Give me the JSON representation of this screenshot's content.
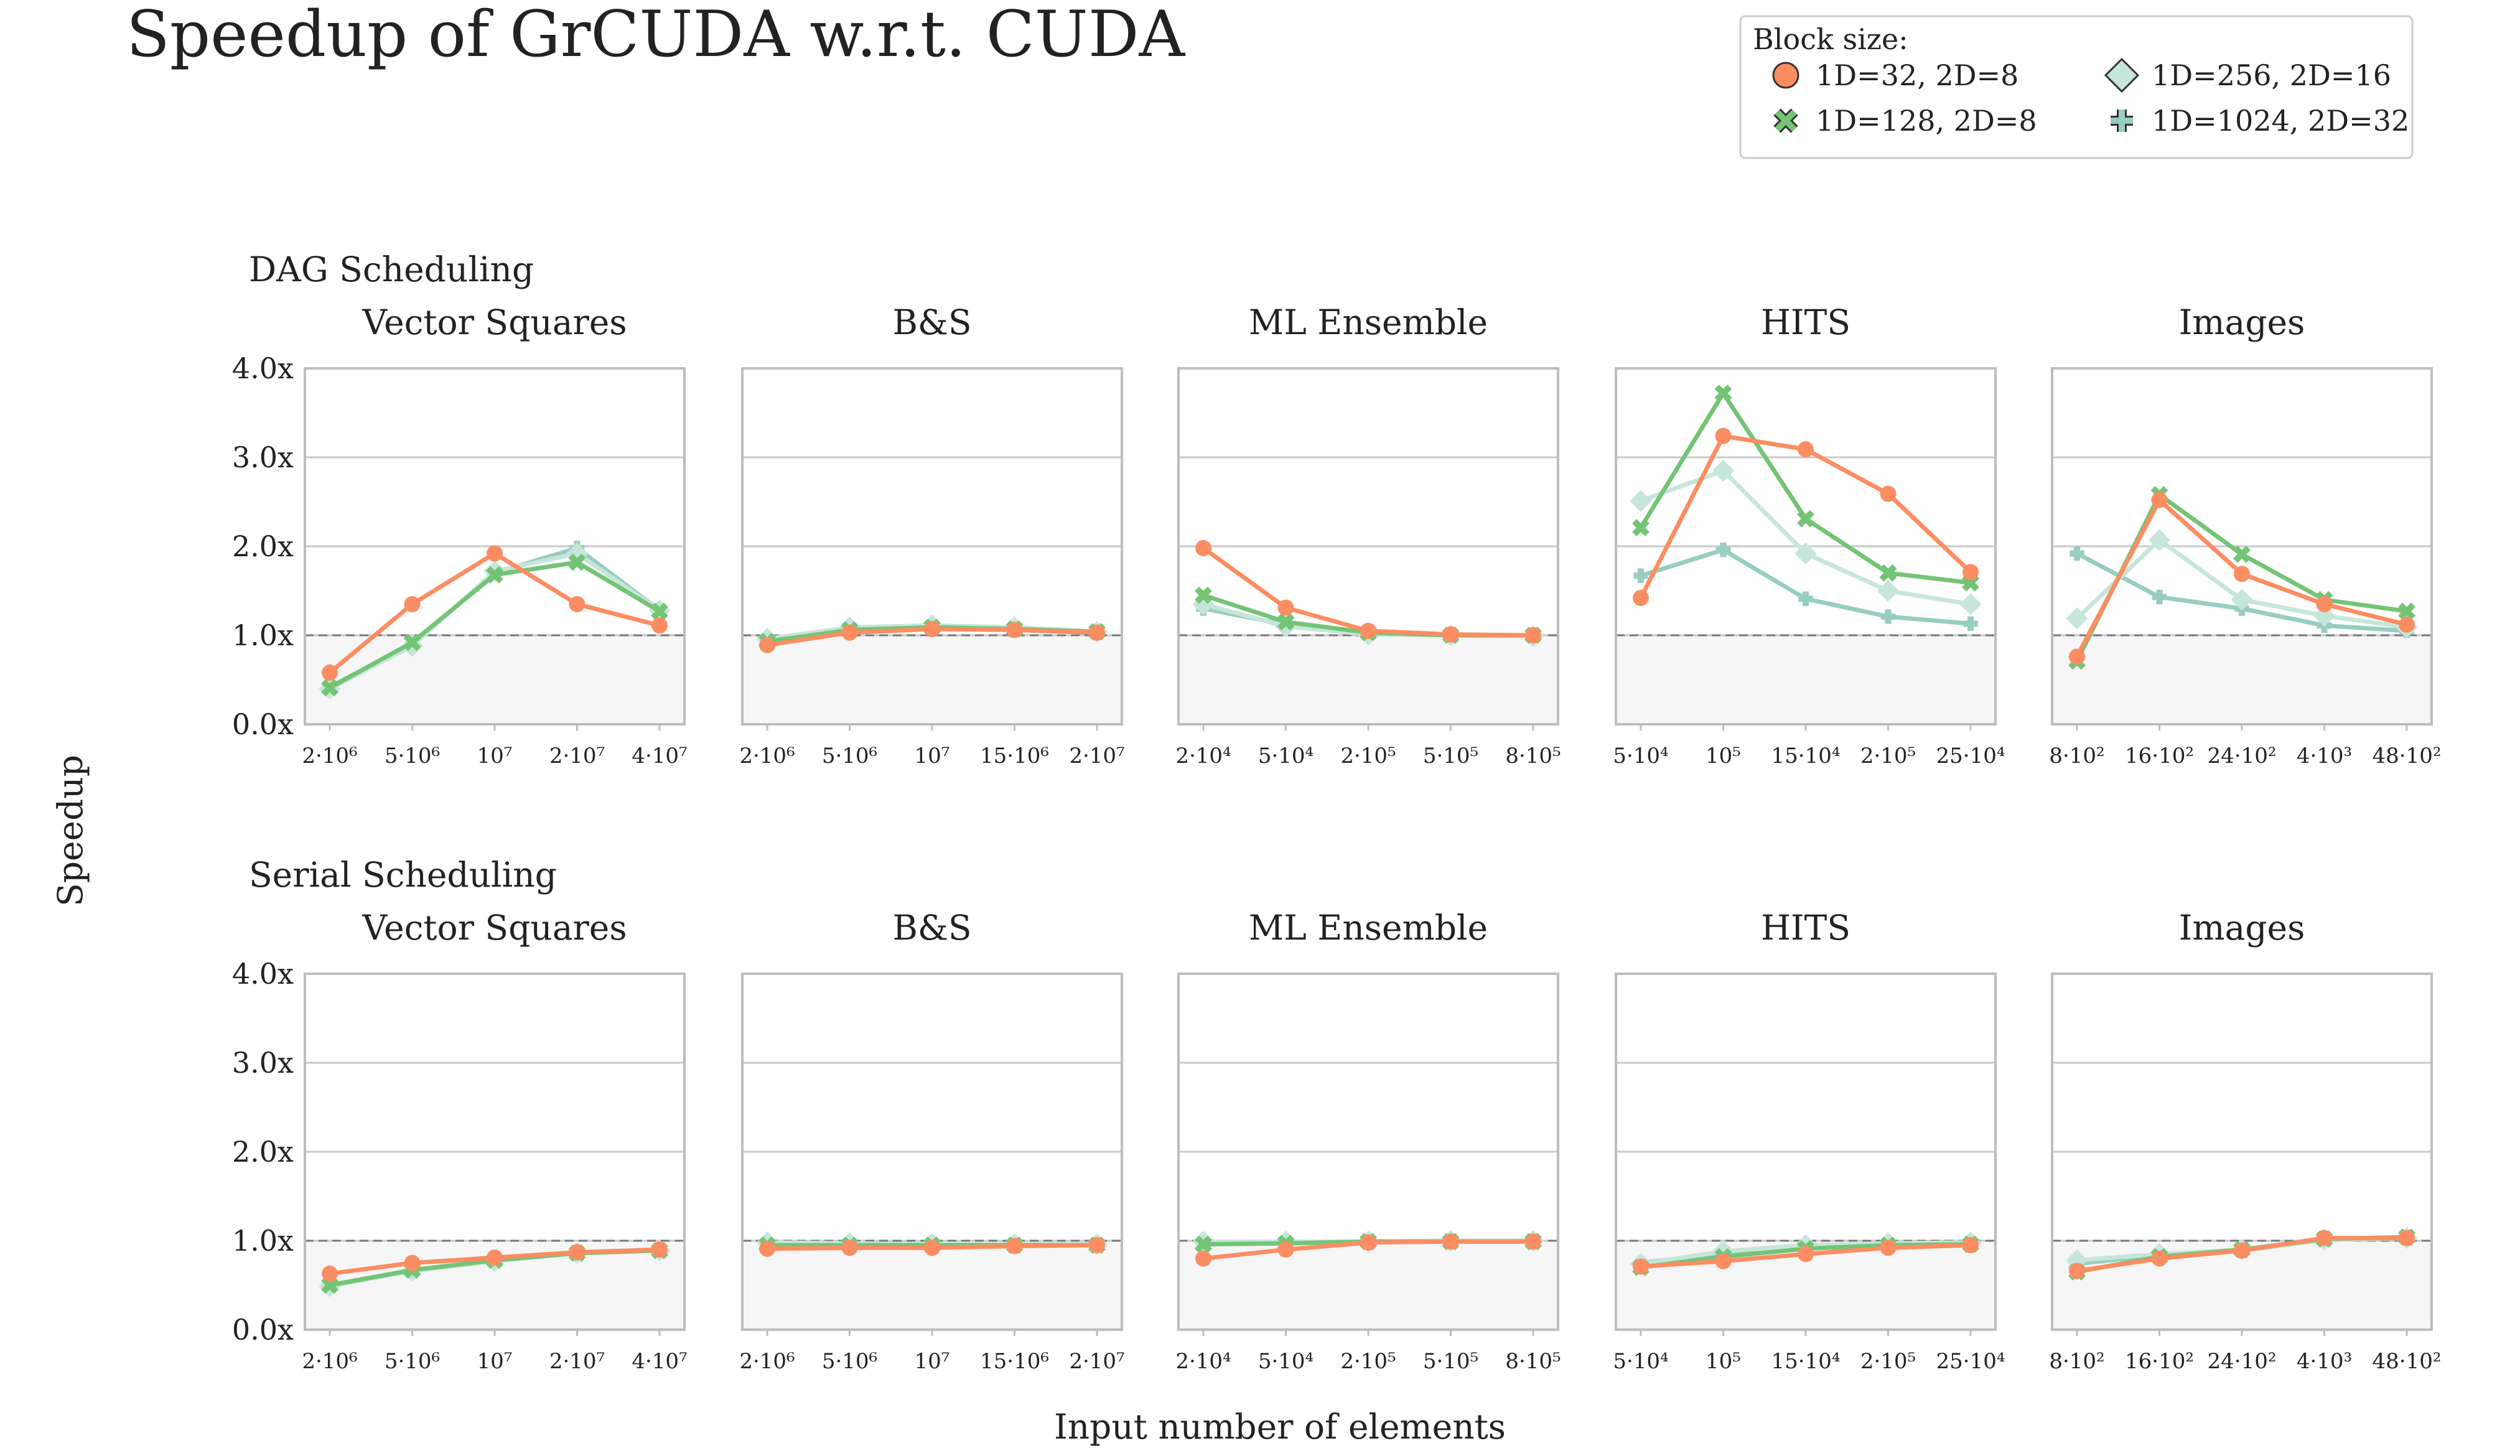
{
  "chart_data": {
    "type": "line",
    "title": "Speedup of GrCUDA w.r.t. CUDA",
    "ylabel": "Speedup",
    "xlabel": "Input number of elements",
    "ylim": [
      0,
      4
    ],
    "yticks": [
      "0.0x",
      "1.0x",
      "2.0x",
      "3.0x",
      "4.0x"
    ],
    "reference_line": 1.0,
    "grid": "horizontal",
    "legend": {
      "title": "Block size:",
      "position": "top-right",
      "entries": [
        {
          "name": "1D=32, 2D=8",
          "marker": "circle",
          "color": "#fc8d62"
        },
        {
          "name": "1D=128, 2D=8",
          "marker": "x",
          "color": "#74c476"
        },
        {
          "name": "1D=256, 2D=16",
          "marker": "diamond",
          "color": "#c6e6da"
        },
        {
          "name": "1D=1024, 2D=32",
          "marker": "plus",
          "color": "#98cdc1"
        }
      ]
    },
    "rows": [
      {
        "label": "DAG Scheduling",
        "panels": [
          {
            "title": "Vector Squares",
            "x": [
              "2·10⁶",
              "5·10⁶",
              "10⁷",
              "2·10⁷",
              "4·10⁷"
            ],
            "series": [
              [
                0.58,
                1.35,
                1.92,
                1.35,
                1.11
              ],
              [
                0.41,
                0.92,
                1.68,
                1.82,
                1.27
              ],
              [
                0.4,
                0.88,
                1.72,
                1.92,
                1.28
              ],
              [
                0.42,
                0.9,
                1.7,
                1.98,
                1.28
              ]
            ]
          },
          {
            "title": "B&S",
            "x": [
              "2·10⁶",
              "5·10⁶",
              "10⁷",
              "15·10⁶",
              "2·10⁷"
            ],
            "series": [
              [
                0.89,
                1.03,
                1.07,
                1.06,
                1.03
              ],
              [
                0.93,
                1.06,
                1.09,
                1.07,
                1.04
              ],
              [
                0.96,
                1.09,
                1.11,
                1.09,
                1.04
              ],
              [
                0.94,
                1.08,
                1.1,
                1.08,
                1.04
              ]
            ]
          },
          {
            "title": "ML Ensemble",
            "x": [
              "2·10⁴",
              "5·10⁴",
              "2·10⁵",
              "5·10⁵",
              "8·10⁵"
            ],
            "series": [
              [
                1.98,
                1.31,
                1.05,
                1.01,
                1.0
              ],
              [
                1.45,
                1.15,
                1.03,
                1.0,
                1.0
              ],
              [
                1.35,
                1.1,
                1.01,
                1.0,
                0.99
              ],
              [
                1.3,
                1.12,
                1.02,
                1.0,
                1.0
              ]
            ]
          },
          {
            "title": "HITS",
            "x": [
              "5·10⁴",
              "10⁵",
              "15·10⁴",
              "2·10⁵",
              "25·10⁴"
            ],
            "series": [
              [
                1.42,
                3.24,
                3.09,
                2.59,
                1.71
              ],
              [
                2.21,
                3.72,
                2.31,
                1.7,
                1.59
              ],
              [
                2.51,
                2.85,
                1.92,
                1.5,
                1.35
              ],
              [
                1.67,
                1.96,
                1.41,
                1.21,
                1.13
              ]
            ]
          },
          {
            "title": "Images",
            "x": [
              "8·10²",
              "16·10²",
              "24·10²",
              "4·10³",
              "48·10²"
            ],
            "series": [
              [
                0.76,
                2.52,
                1.69,
                1.35,
                1.12
              ],
              [
                0.71,
                2.58,
                1.91,
                1.4,
                1.27
              ],
              [
                1.19,
                2.07,
                1.4,
                1.22,
                1.09
              ],
              [
                1.92,
                1.43,
                1.3,
                1.11,
                1.05
              ]
            ]
          }
        ]
      },
      {
        "label": "Serial Scheduling",
        "panels": [
          {
            "title": "Vector Squares",
            "x": [
              "2·10⁶",
              "5·10⁶",
              "10⁷",
              "2·10⁷",
              "4·10⁷"
            ],
            "series": [
              [
                0.63,
                0.75,
                0.81,
                0.87,
                0.9
              ],
              [
                0.5,
                0.67,
                0.78,
                0.86,
                0.89
              ],
              [
                0.49,
                0.66,
                0.77,
                0.86,
                0.89
              ],
              [
                0.5,
                0.67,
                0.78,
                0.87,
                0.9
              ]
            ]
          },
          {
            "title": "B&S",
            "x": [
              "2·10⁶",
              "5·10⁶",
              "10⁷",
              "15·10⁶",
              "2·10⁷"
            ],
            "series": [
              [
                0.91,
                0.92,
                0.92,
                0.94,
                0.95
              ],
              [
                0.95,
                0.95,
                0.95,
                0.95,
                0.95
              ],
              [
                0.98,
                0.97,
                0.96,
                0.96,
                0.96
              ],
              [
                0.96,
                0.96,
                0.95,
                0.95,
                0.95
              ]
            ]
          },
          {
            "title": "ML Ensemble",
            "x": [
              "2·10⁴",
              "5·10⁴",
              "2·10⁵",
              "5·10⁵",
              "8·10⁵"
            ],
            "series": [
              [
                0.8,
                0.9,
                0.98,
                0.99,
                0.99
              ],
              [
                0.96,
                0.97,
                0.99,
                0.99,
                0.99
              ],
              [
                0.99,
                0.99,
                0.99,
                1.0,
                1.0
              ],
              [
                0.97,
                0.98,
                0.99,
                1.0,
                1.0
              ]
            ]
          },
          {
            "title": "HITS",
            "x": [
              "5·10⁴",
              "10⁵",
              "15·10⁴",
              "2·10⁵",
              "25·10⁴"
            ],
            "series": [
              [
                0.71,
                0.77,
                0.85,
                0.92,
                0.95
              ],
              [
                0.7,
                0.82,
                0.91,
                0.95,
                0.96
              ],
              [
                0.74,
                0.88,
                0.95,
                0.97,
                0.98
              ],
              [
                0.75,
                0.86,
                0.93,
                0.96,
                0.97
              ]
            ]
          },
          {
            "title": "Images",
            "x": [
              "8·10²",
              "16·10²",
              "24·10²",
              "4·10³",
              "48·10²"
            ],
            "series": [
              [
                0.66,
                0.8,
                0.89,
                1.03,
                1.03
              ],
              [
                0.65,
                0.82,
                0.9,
                1.02,
                1.04
              ],
              [
                0.78,
                0.85,
                0.9,
                1.01,
                1.03
              ],
              [
                0.74,
                0.84,
                0.89,
                1.01,
                1.03
              ]
            ]
          }
        ]
      }
    ]
  }
}
